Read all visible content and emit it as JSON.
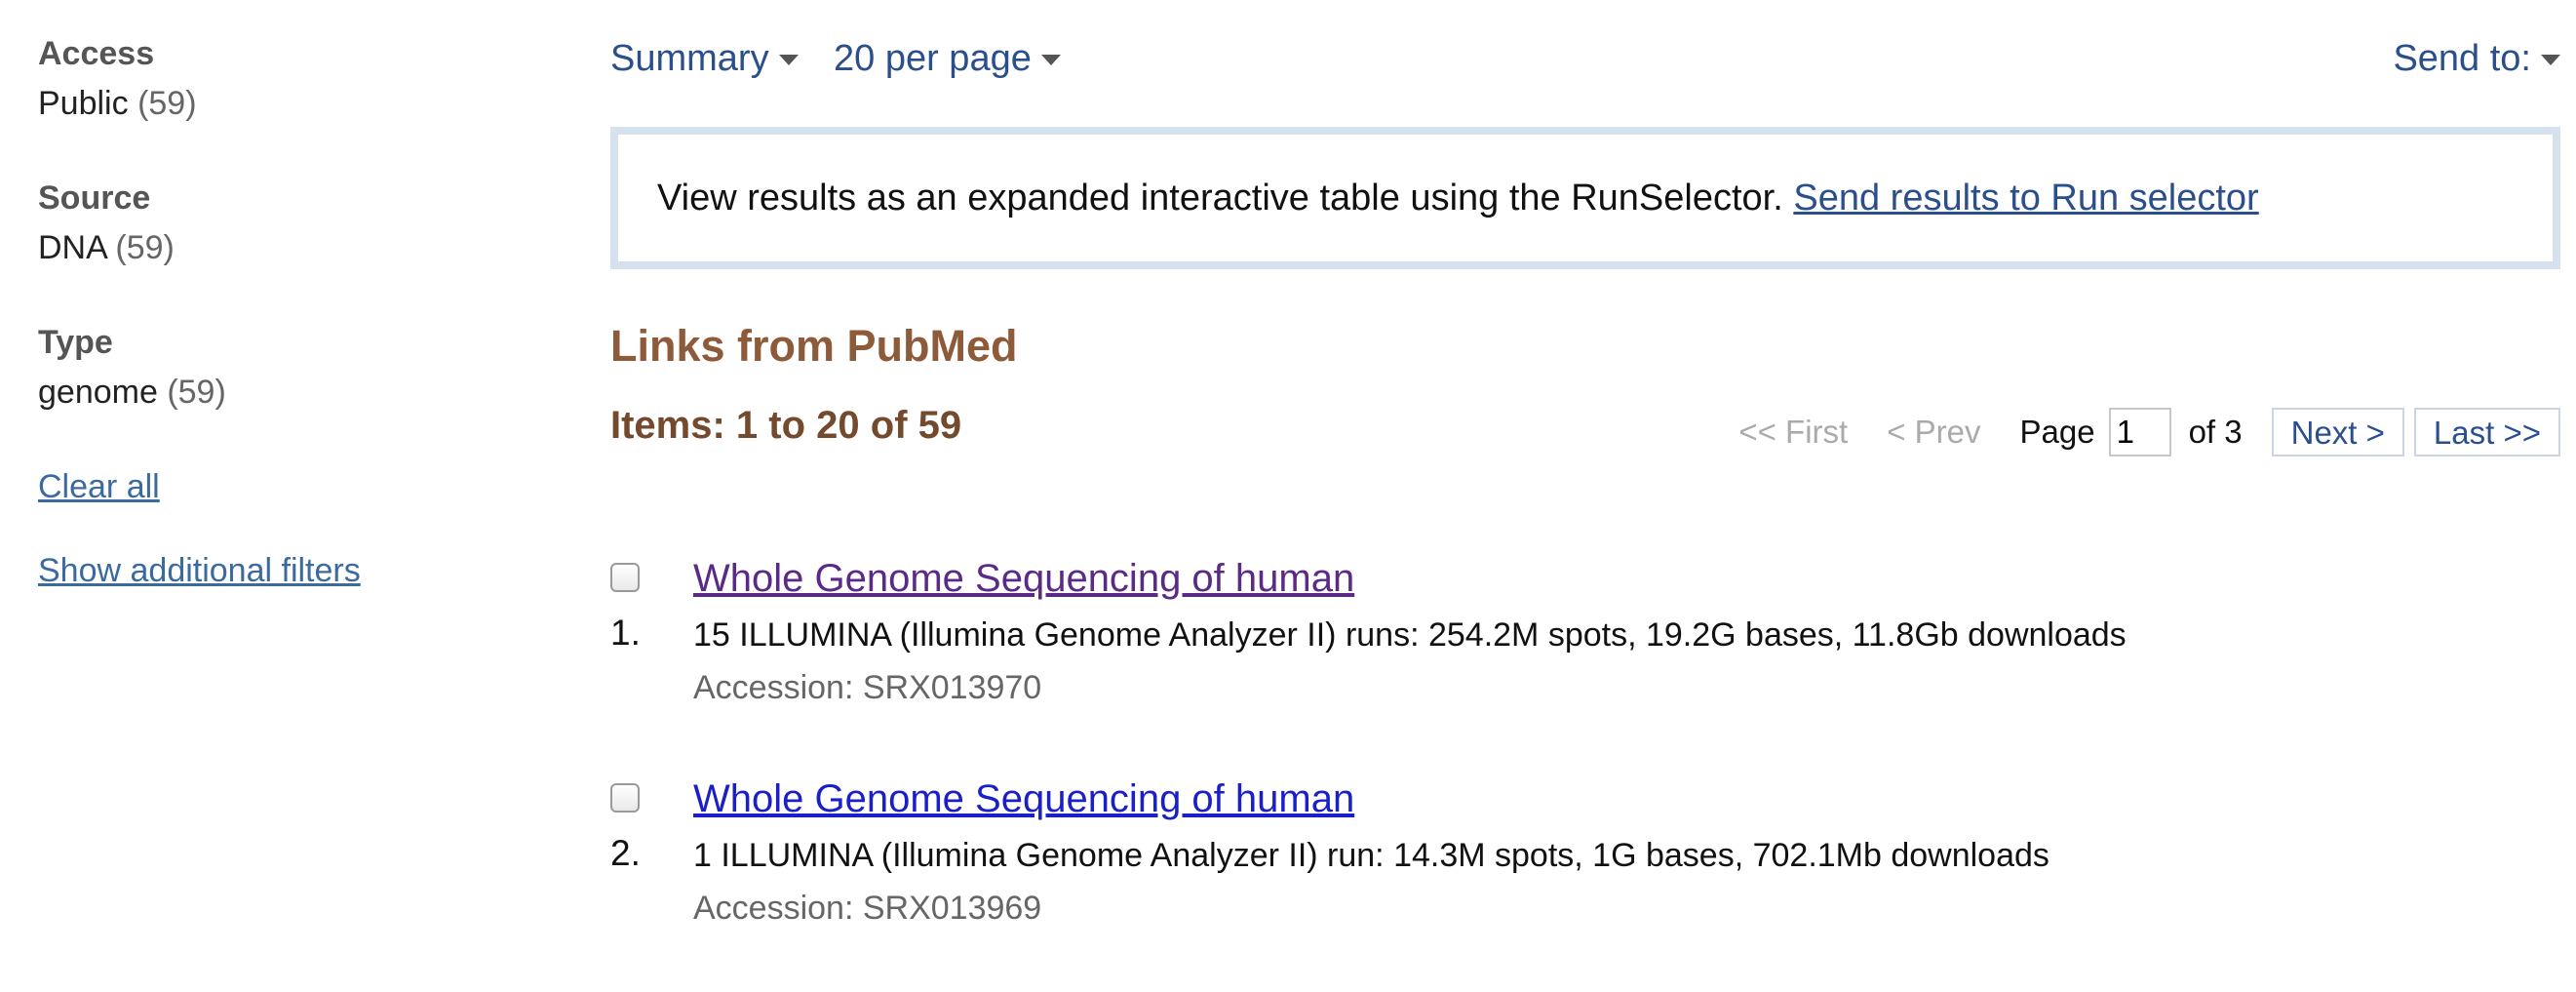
{
  "sidebar": {
    "facets": [
      {
        "title": "Access",
        "item": "Public",
        "count": "(59)"
      },
      {
        "title": "Source",
        "item": "DNA",
        "count": "(59)"
      },
      {
        "title": "Type",
        "item": "genome",
        "count": "(59)"
      }
    ],
    "clear_all": "Clear all",
    "show_filters": "Show additional filters"
  },
  "toolbar": {
    "summary": "Summary",
    "per_page": "20 per page",
    "send_to": "Send to:"
  },
  "banner": {
    "text": "View results as an expanded interactive table using the RunSelector.",
    "link": "Send results to Run selector"
  },
  "section_title": "Links from PubMed",
  "items_count": "Items: 1 to 20 of 59",
  "pager": {
    "first": "<< First",
    "prev": "< Prev",
    "page_label": "Page",
    "page_value": "1",
    "of_total": "of 3",
    "next": "Next >",
    "last": "Last >>"
  },
  "results": [
    {
      "number": "1.",
      "title": "Whole Genome Sequencing of human",
      "desc": "15 ILLUMINA (Illumina Genome Analyzer II) runs: 254.2M spots, 19.2G bases, 11.8Gb downloads",
      "accession": "Accession: SRX013970"
    },
    {
      "number": "2.",
      "title": "Whole Genome Sequencing of human",
      "desc": "1 ILLUMINA (Illumina Genome Analyzer II) run: 14.3M spots, 1G bases, 702.1Mb downloads",
      "accession": "Accession: SRX013969"
    }
  ],
  "colors": {
    "link": "#2b4e8c",
    "visited": "#5b2a86",
    "section_title": "#8d5a3a",
    "banner_border": "#d5e1ec"
  }
}
